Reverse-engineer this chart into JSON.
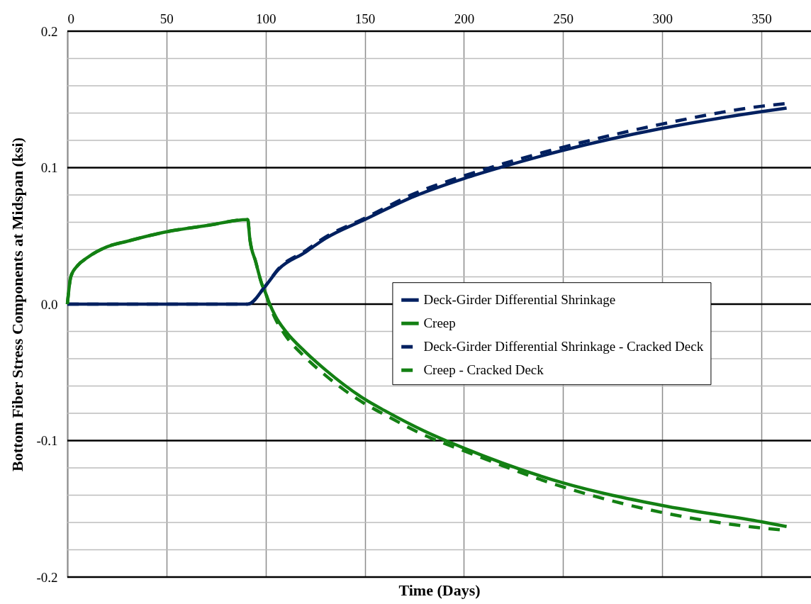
{
  "chart_data": {
    "type": "line",
    "xlabel": "Time (Days)",
    "ylabel": "Bottom Fiber Stress Components at Midspan (ksi)",
    "xlim": [
      0,
      375
    ],
    "xticks": [
      0,
      50,
      100,
      150,
      200,
      250,
      300,
      350
    ],
    "ylim": [
      -0.2,
      0.2
    ],
    "yticks": [
      {
        "value": -0.2,
        "label": "-0.2"
      },
      {
        "value": -0.18,
        "label": null
      },
      {
        "value": -0.16,
        "label": null
      },
      {
        "value": -0.14,
        "label": null
      },
      {
        "value": -0.12,
        "label": null
      },
      {
        "value": -0.1,
        "label": "-0.1"
      },
      {
        "value": -0.08,
        "label": null
      },
      {
        "value": -0.06,
        "label": null
      },
      {
        "value": -0.04,
        "label": null
      },
      {
        "value": -0.02,
        "label": null
      },
      {
        "value": 0,
        "label": "0.0"
      },
      {
        "value": 0.02,
        "label": null
      },
      {
        "value": 0.04,
        "label": null
      },
      {
        "value": 0.06,
        "label": null
      },
      {
        "value": 0.08,
        "label": null
      },
      {
        "value": 0.1,
        "label": "0.1"
      },
      {
        "value": 0.12,
        "label": null
      },
      {
        "value": 0.14,
        "label": null
      },
      {
        "value": 0.16,
        "label": null
      },
      {
        "value": 0.18,
        "label": null
      },
      {
        "value": 0.2,
        "label": "0.2"
      }
    ],
    "grid": true,
    "legend": "right",
    "marker": "none",
    "series": [
      {
        "name": "Deck-Girder Differential Shrinkage",
        "color": "#002060",
        "line_style": "solid",
        "x": [
          0,
          91,
          100,
          106.5,
          120,
          130,
          150,
          175,
          200,
          220,
          250,
          300,
          350,
          362.7
        ],
        "values": [
          0,
          0,
          0.0135,
          0.0255,
          0.038,
          0.048,
          0.062,
          0.079,
          0.092,
          0.1008,
          0.1127,
          0.1288,
          0.141,
          0.1436
        ]
      },
      {
        "name": "Creep",
        "color": "#138013",
        "line_style": "solid",
        "x": [
          0,
          1.8,
          5,
          10,
          20,
          30,
          50,
          70,
          91,
          92,
          95,
          98,
          100,
          101.8,
          105,
          110,
          120,
          130,
          150,
          160,
          180,
          200,
          250,
          300,
          350,
          362.7
        ],
        "values": [
          0,
          0.0203,
          0.028,
          0.034,
          0.042,
          0.046,
          0.053,
          0.0575,
          0.062,
          0.048,
          0.031,
          0.015,
          0.008,
          0.001,
          -0.009,
          -0.0197,
          -0.035,
          -0.048,
          -0.0697,
          -0.078,
          -0.093,
          -0.1055,
          -0.131,
          -0.1475,
          -0.1595,
          -0.163
        ]
      },
      {
        "name": "Deck-Girder Differential Shrinkage - Cracked Deck",
        "color": "#002060",
        "line_style": "dashed",
        "x": [
          0,
          91,
          100,
          106.5,
          120,
          130,
          150,
          175,
          200,
          220,
          250,
          300,
          350,
          362.7
        ],
        "values": [
          0,
          0,
          0.0135,
          0.026,
          0.039,
          0.049,
          0.063,
          0.081,
          0.094,
          0.103,
          0.115,
          0.132,
          0.145,
          0.147
        ]
      },
      {
        "name": "Creep - Cracked Deck",
        "color": "#138013",
        "line_style": "dashed",
        "x": [
          0,
          1.8,
          5,
          10,
          20,
          30,
          50,
          70,
          91,
          92,
          95,
          98,
          100,
          101.8,
          105,
          110,
          120,
          130,
          150,
          160,
          180,
          200,
          250,
          300,
          350,
          362.7
        ],
        "values": [
          0,
          0.0203,
          0.028,
          0.034,
          0.042,
          0.046,
          0.053,
          0.0575,
          0.062,
          0.048,
          0.031,
          0.015,
          0.008,
          0.0,
          -0.011,
          -0.023,
          -0.039,
          -0.052,
          -0.073,
          -0.081,
          -0.096,
          -0.1075,
          -0.134,
          -0.1527,
          -0.164,
          -0.1657
        ]
      }
    ]
  }
}
